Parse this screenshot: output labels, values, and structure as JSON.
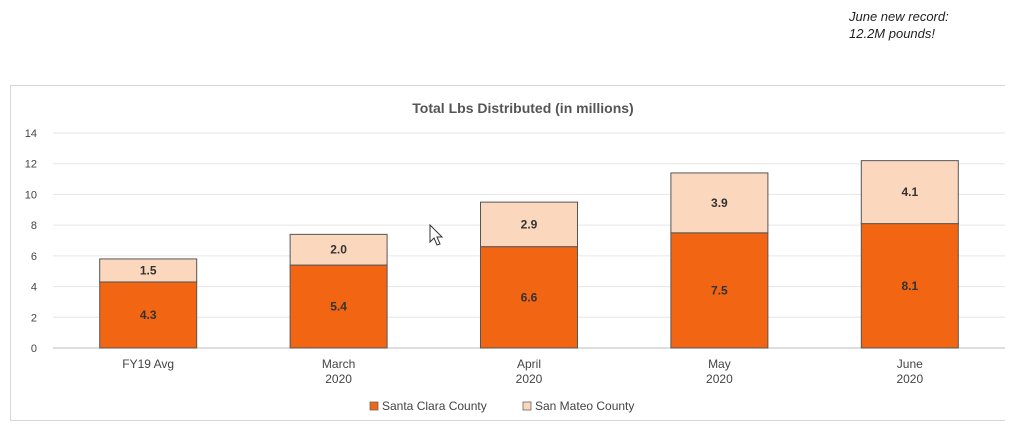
{
  "note": {
    "line1": "June new record:",
    "line2": "12.2M pounds!"
  },
  "chart_data": {
    "type": "bar",
    "stacked": true,
    "title": "Total Lbs Distributed (in millions)",
    "xlabel": "",
    "ylabel": "",
    "categories": [
      [
        "FY19 Avg"
      ],
      [
        "March",
        "2020"
      ],
      [
        "April",
        "2020"
      ],
      [
        "May",
        "2020"
      ],
      [
        "June",
        "2020"
      ]
    ],
    "series": [
      {
        "name": "Santa Clara County",
        "color": "#f26512",
        "values": [
          4.3,
          5.4,
          6.6,
          7.5,
          8.1
        ],
        "labels": [
          "4.3",
          "5.4",
          "6.6",
          "7.5",
          "8.1"
        ]
      },
      {
        "name": "San Mateo County",
        "color": "#fbd7bd",
        "values": [
          1.5,
          2.0,
          2.9,
          3.9,
          4.1
        ],
        "labels": [
          "1.5",
          "2.0",
          "2.9",
          "3.9",
          "4.1"
        ]
      }
    ],
    "ylim": [
      0,
      14
    ],
    "yticks": [
      0,
      2,
      4,
      6,
      8,
      10,
      12,
      14
    ],
    "grid": true,
    "legend": "bottom-center"
  }
}
